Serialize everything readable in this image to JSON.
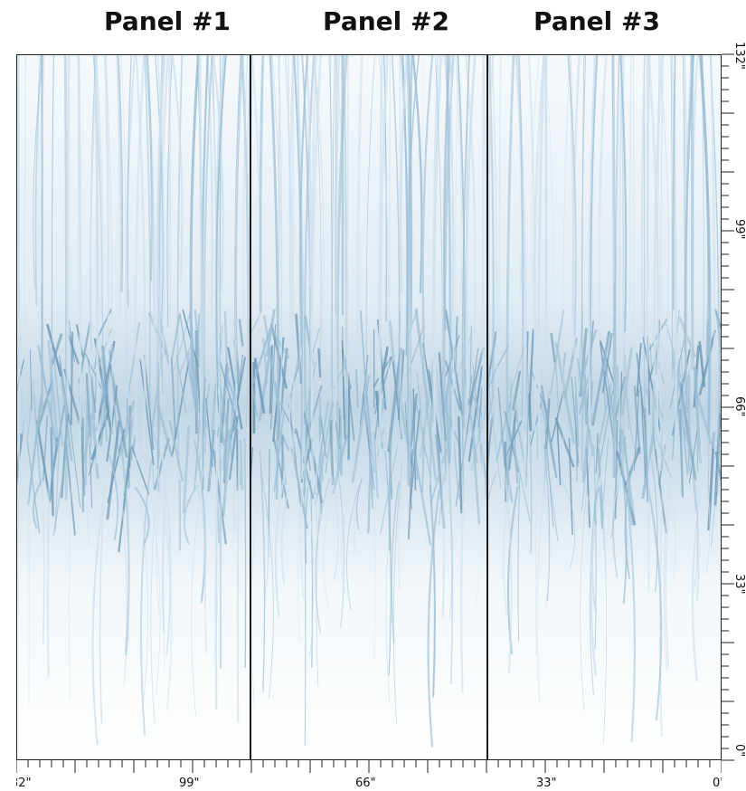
{
  "panels": [
    {
      "title": "Panel #1"
    },
    {
      "title": "Panel #2"
    },
    {
      "title": "Panel #3"
    }
  ],
  "rulers": {
    "bottom_labels": [
      "32\"",
      "99\"",
      "66\"",
      "33\"",
      "0'"
    ],
    "right_labels": [
      "132\"",
      "99\"",
      "66\"",
      "33\"",
      "0\""
    ]
  },
  "colors": {
    "grass_light": "#cfe1ee",
    "grass_mid": "#9dbfd6",
    "grass_dark": "#6f9ab8",
    "frame": "#222222"
  }
}
